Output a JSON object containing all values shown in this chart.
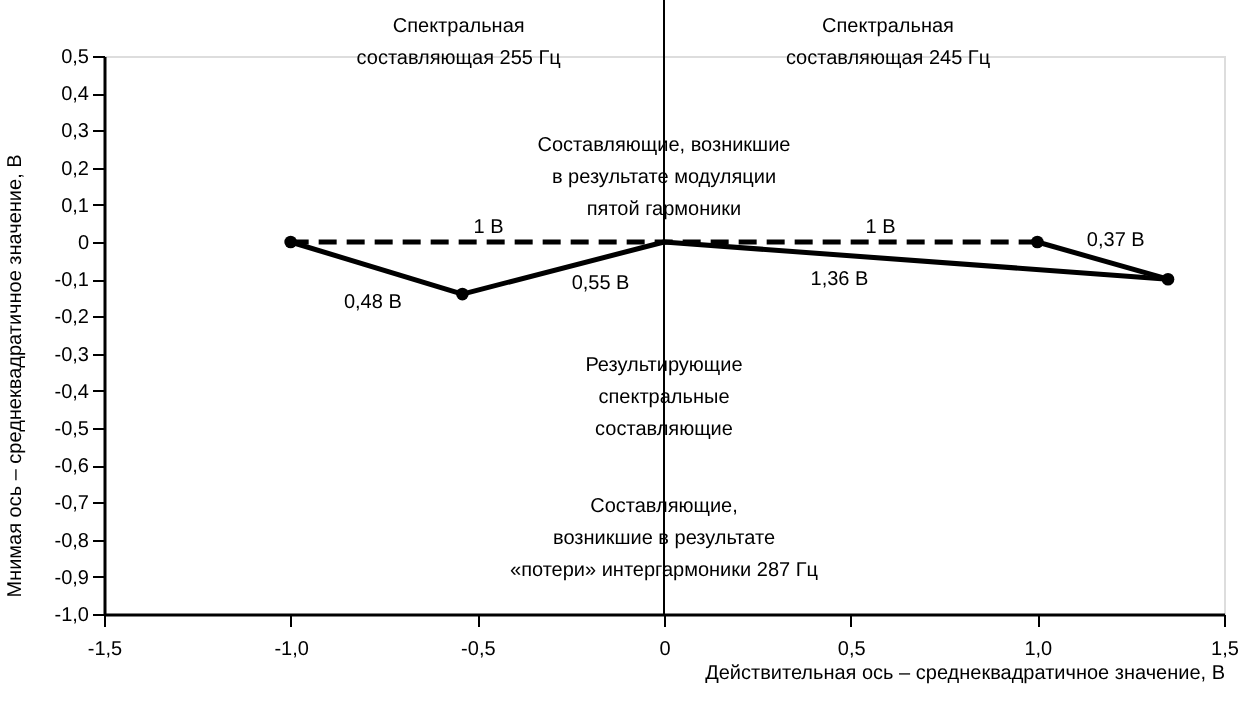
{
  "chart_data": {
    "type": "line",
    "xlabel": "Действительная ось – среднеквадратичное значение, В",
    "ylabel": "Мнимая ось – среднеквадратичное значение, В",
    "xlim": [
      -1.5,
      1.5
    ],
    "xticks": [
      {
        "value": -1.5,
        "label": "-1,5"
      },
      {
        "value": -1.0,
        "label": "-1,0"
      },
      {
        "value": -0.5,
        "label": "-0,5"
      },
      0,
      {
        "value": 0.5,
        "label": "0,5"
      },
      {
        "value": 1.0,
        "label": "1,0"
      },
      {
        "value": 1.5,
        "label": "1,5"
      }
    ],
    "ylim": [
      -1.0,
      0.5
    ],
    "yticks": [
      {
        "value": 0.5,
        "label": "0,5"
      },
      {
        "value": 0.4,
        "label": "0,4"
      },
      {
        "value": 0.3,
        "label": "0,3"
      },
      {
        "value": 0.2,
        "label": "0,2"
      },
      {
        "value": 0.1,
        "label": "0,1"
      },
      0,
      {
        "value": -0.1,
        "label": "-0,1"
      },
      {
        "value": -0.2,
        "label": "-0,2"
      },
      {
        "value": -0.3,
        "label": "-0,3"
      },
      {
        "value": -0.4,
        "label": "-0,4"
      },
      {
        "value": -0.5,
        "label": "-0,5"
      },
      {
        "value": -0.6,
        "label": "-0,6"
      },
      {
        "value": -0.7,
        "label": "-0,7"
      },
      {
        "value": -0.8,
        "label": "-0,8"
      },
      {
        "value": -0.9,
        "label": "-0,9"
      },
      {
        "value": -1.0,
        "label": "-1,0"
      }
    ],
    "grid": false,
    "series": [
      {
        "color": "#000000",
        "line_style": "dashed",
        "marker": "none",
        "x": [
          -1,
          0,
          1
        ],
        "values": [
          0,
          0,
          0
        ]
      },
      {
        "color": "#000000",
        "line_style": "solid",
        "marker": "none",
        "x": [
          -1,
          -0.54
        ],
        "values": [
          0,
          -0.14
        ]
      },
      {
        "color": "#000000",
        "line_style": "solid",
        "marker": "none",
        "x": [
          -0.54,
          0,
          1.35
        ],
        "values": [
          -0.14,
          0,
          -0.1
        ]
      },
      {
        "color": "#000000",
        "line_style": "solid",
        "marker": "none",
        "x": [
          1,
          1.35
        ],
        "values": [
          0,
          -0.1
        ]
      },
      {
        "type": "scatter",
        "color": "#000000",
        "marker": "circle",
        "x": [
          -1,
          -0.54,
          1,
          1.35
        ],
        "values": [
          0,
          -0.14,
          0,
          -0.1
        ]
      }
    ],
    "ref_lines": [
      {
        "axis": "x",
        "value": 0,
        "color": "#000000",
        "line_style": "solid"
      }
    ],
    "annotations": [
      "Спектральная\nсоставляющая 255 Гц",
      "Спектральная\nсоставляющая 245 Гц",
      "Составляющие, возникшие\nв результате модуляции\nпятой гармоники",
      "Результирующие\nспектральные\nсоставляющие",
      "Составляющие,\nвозникшие в результате\n«потери» интергармоники 287 Гц",
      "1 В",
      "1 В",
      "0,48 В",
      "0,55 В",
      "1,36 В",
      "0,37 В"
    ]
  }
}
